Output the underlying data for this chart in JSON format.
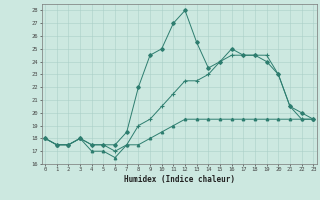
{
  "title": "",
  "xlabel": "Humidex (Indice chaleur)",
  "ylabel": "",
  "x": [
    0,
    1,
    2,
    3,
    4,
    5,
    6,
    7,
    8,
    9,
    10,
    11,
    12,
    13,
    14,
    15,
    16,
    17,
    18,
    19,
    20,
    21,
    22,
    23
  ],
  "line_top": [
    18,
    17.5,
    17.5,
    18,
    17.5,
    17.5,
    17.5,
    18.5,
    22,
    24.5,
    25,
    27,
    28,
    25.5,
    23.5,
    24,
    25,
    24.5,
    24.5,
    24,
    23,
    20.5,
    20,
    19.5
  ],
  "line_mid": [
    18,
    17.5,
    17.5,
    18,
    17.5,
    17.5,
    17,
    17.5,
    19,
    19.5,
    20.5,
    21.5,
    22.5,
    22.5,
    23,
    24,
    24.5,
    24.5,
    24.5,
    24.5,
    23,
    20.5,
    19.5,
    19.5
  ],
  "line_bot": [
    18,
    17.5,
    17.5,
    18,
    17,
    17,
    16.5,
    17.5,
    17.5,
    18,
    18.5,
    19,
    19.5,
    19.5,
    19.5,
    19.5,
    19.5,
    19.5,
    19.5,
    19.5,
    19.5,
    19.5,
    19.5,
    19.5
  ],
  "line_color": "#2d7d6f",
  "bg_color": "#cce8e0",
  "grid_color": "#aacfc8",
  "ylim": [
    16,
    28.5
  ],
  "yticks": [
    16,
    17,
    18,
    19,
    20,
    21,
    22,
    23,
    24,
    25,
    26,
    27,
    28
  ],
  "xlim": [
    -0.3,
    23.3
  ],
  "xticks": [
    0,
    1,
    2,
    3,
    4,
    5,
    6,
    7,
    8,
    9,
    10,
    11,
    12,
    13,
    14,
    15,
    16,
    17,
    18,
    19,
    20,
    21,
    22,
    23
  ]
}
